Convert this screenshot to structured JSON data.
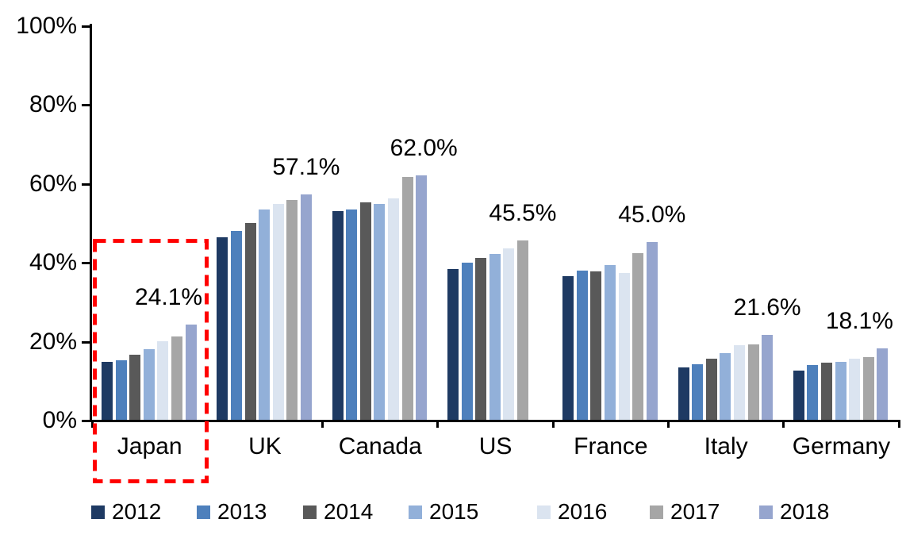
{
  "chart_data": {
    "type": "bar",
    "title": "",
    "xlabel": "",
    "ylabel": "",
    "ylim": [
      0,
      100
    ],
    "ytick_labels": [
      "0%",
      "20%",
      "40%",
      "60%",
      "80%",
      "100%"
    ],
    "grid": false,
    "legend_position": "bottom",
    "categories": [
      "Japan",
      "UK",
      "Canada",
      "US",
      "France",
      "Italy",
      "Germany"
    ],
    "series": [
      {
        "name": "2012",
        "color": "#1E3A63",
        "values": [
          14.7,
          46.2,
          52.9,
          38.2,
          36.5,
          13.3,
          12.5
        ]
      },
      {
        "name": "2013",
        "color": "#4E80BC",
        "values": [
          15.0,
          47.8,
          53.4,
          39.9,
          37.8,
          14.0,
          13.9
        ]
      },
      {
        "name": "2014",
        "color": "#595959",
        "values": [
          16.5,
          50.0,
          55.2,
          41.0,
          37.7,
          15.4,
          14.4
        ]
      },
      {
        "name": "2015",
        "color": "#92B0D9",
        "values": [
          18.0,
          53.4,
          54.8,
          42.0,
          39.2,
          16.9,
          14.7
        ]
      },
      {
        "name": "2016",
        "color": "#DBE4F0",
        "values": [
          20.0,
          54.8,
          56.2,
          43.5,
          37.3,
          19.0,
          15.5
        ]
      },
      {
        "name": "2017",
        "color": "#A6A6A6",
        "values": [
          21.2,
          55.8,
          61.5,
          45.5,
          42.3,
          19.2,
          15.9
        ]
      },
      {
        "name": "2018",
        "color": "#96A5CE",
        "values": [
          24.1,
          57.1,
          62.0,
          null,
          45.0,
          21.6,
          18.1
        ]
      }
    ],
    "annotations": [
      {
        "category": "Japan",
        "text": "24.1%",
        "dx": -28
      },
      {
        "category": "UK",
        "text": "57.1%",
        "dx": 0
      },
      {
        "category": "Canada",
        "text": "62.0%",
        "dx": 3
      },
      {
        "category": "US",
        "text": "45.5%",
        "dx": 0
      },
      {
        "category": "France",
        "text": "45.0%",
        "dx": 0
      },
      {
        "category": "Italy",
        "text": "21.6%",
        "dx": 0
      },
      {
        "category": "Germany",
        "text": "18.1%",
        "dx": -29
      }
    ],
    "highlight": {
      "type": "dashed-box",
      "category": "Japan",
      "color": "#FF0000"
    }
  }
}
